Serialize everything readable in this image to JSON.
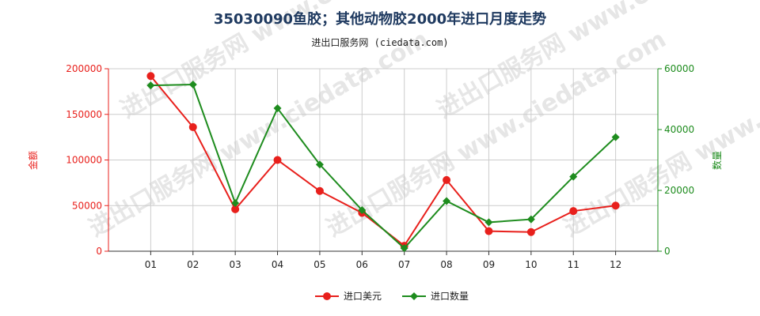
{
  "chart_data": {
    "type": "line",
    "title": "35030090鱼胶；其他动物胶2000年进口月度走势",
    "subtitle": "进出口服务网 (ciedata.com)",
    "watermark": "进出口服务网 www.ciedata.com",
    "categories": [
      "01",
      "02",
      "03",
      "04",
      "05",
      "06",
      "07",
      "08",
      "09",
      "10",
      "11",
      "12"
    ],
    "y_left": {
      "label": "金额",
      "range": [
        0,
        200000
      ],
      "ticks": [
        0,
        50000,
        100000,
        150000,
        200000
      ],
      "color": "#e8201c"
    },
    "y_right": {
      "label": "数量",
      "range": [
        0,
        60000
      ],
      "ticks": [
        0,
        20000,
        40000,
        60000
      ],
      "color": "#1e8c1e"
    },
    "grid": true,
    "legend_position": "bottom",
    "series": [
      {
        "name": "进口美元",
        "axis": "left",
        "color": "#e8201c",
        "marker": "circle",
        "values": [
          192000,
          136000,
          46000,
          100000,
          66000,
          42000,
          6000,
          78000,
          22000,
          21000,
          44000,
          50000
        ]
      },
      {
        "name": "进口数量",
        "axis": "right",
        "color": "#1e8c1e",
        "marker": "diamond",
        "values": [
          54500,
          54800,
          15800,
          47000,
          28500,
          13500,
          1000,
          16500,
          9500,
          10500,
          24500,
          37500
        ]
      }
    ]
  }
}
